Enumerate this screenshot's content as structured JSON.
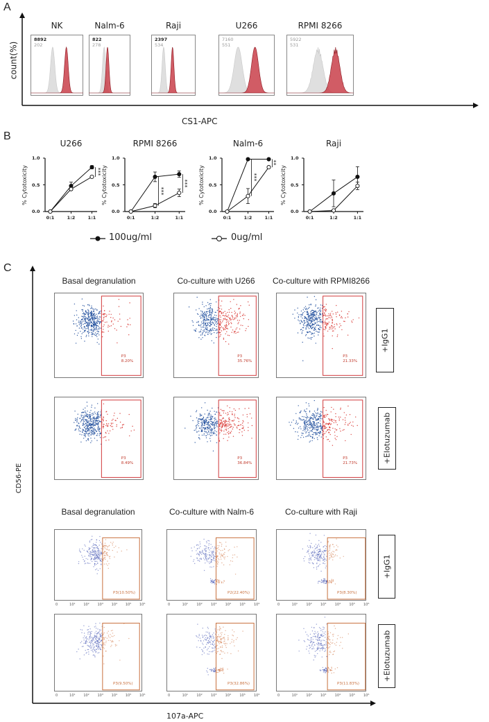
{
  "colors": {
    "isotype_fill": "#d9d9d9",
    "cs1_fill": "#c9404a",
    "cs1_stroke": "#8b1a22",
    "gate": "#d0383a",
    "gate_orange": "#c8703e",
    "dot_blue": "#1f4e9c",
    "dot_red": "#d8332f",
    "dot_blue_light": "#4b5cb5",
    "dot_orange": "#d27a4a"
  },
  "panel_a": {
    "label": "A",
    "ylabel": "count(%)",
    "xlabel": "CS1-APC",
    "histograms": [
      {
        "title": "NK",
        "count_cs1": "8892",
        "count_isotype": "202"
      },
      {
        "title": "Nalm-6",
        "count_cs1": "822",
        "count_isotype": "278"
      },
      {
        "title": "Raji",
        "count_cs1": "2397",
        "count_isotype": "534"
      },
      {
        "title": "U266",
        "count_cs1": "7160",
        "count_isotype": "551"
      },
      {
        "title": "RPMI 8266",
        "count_cs1": "5922",
        "count_isotype": "531"
      }
    ]
  },
  "panel_b": {
    "label": "B",
    "legend": {
      "filled": "100ug/ml",
      "open": "0ug/ml"
    }
  },
  "chart_data": [
    {
      "type": "line",
      "title": "U266",
      "ylabel": "% Cytotoxicity",
      "xlabel": "",
      "categories": [
        "0:1",
        "1:2",
        "1:1"
      ],
      "ylim": [
        0,
        1
      ],
      "yticks": [
        "0.0",
        "0.5",
        "1.0"
      ],
      "grid": false,
      "series": [
        {
          "name": "100ug/ml",
          "marker": "filled",
          "values": [
            0,
            0.48,
            0.83
          ],
          "errors": [
            0,
            0.07,
            0.03
          ]
        },
        {
          "name": "0ug/ml",
          "marker": "open",
          "values": [
            0,
            0.42,
            0.65
          ],
          "errors": [
            0,
            0.02,
            0.02
          ]
        }
      ],
      "significance": [
        {
          "category": "1:1",
          "label": "***"
        }
      ]
    },
    {
      "type": "line",
      "title": "RPMI 8266",
      "ylabel": "% Cytotoxicity",
      "xlabel": "",
      "categories": [
        "0:1",
        "1:2",
        "1:1"
      ],
      "ylim": [
        0,
        1
      ],
      "yticks": [
        "0.0",
        "0.5",
        "1.0"
      ],
      "grid": false,
      "series": [
        {
          "name": "100ug/ml",
          "marker": "filled",
          "values": [
            0,
            0.65,
            0.7
          ],
          "errors": [
            0,
            0.09,
            0.06
          ]
        },
        {
          "name": "0ug/ml",
          "marker": "open",
          "values": [
            0,
            0.11,
            0.35
          ],
          "errors": [
            0,
            0.04,
            0.07
          ]
        }
      ],
      "significance": [
        {
          "category": "1:2",
          "label": "***"
        },
        {
          "category": "1:1",
          "label": "***"
        }
      ]
    },
    {
      "type": "line",
      "title": "Nalm-6",
      "ylabel": "% Cytotoxicity",
      "xlabel": "",
      "categories": [
        "0:1",
        "1:2",
        "1:1"
      ],
      "ylim": [
        0,
        1
      ],
      "yticks": [
        "0.0",
        "0.5",
        "1.0"
      ],
      "grid": false,
      "series": [
        {
          "name": "100ug/ml",
          "marker": "filled",
          "values": [
            0,
            0.98,
            0.98
          ],
          "errors": [
            0,
            0.01,
            0.01
          ]
        },
        {
          "name": "0ug/ml",
          "marker": "open",
          "values": [
            0,
            0.29,
            0.83
          ],
          "errors": [
            0,
            0.14,
            0.01
          ]
        }
      ],
      "significance": [
        {
          "category": "1:2",
          "label": "***"
        },
        {
          "category": "1:1",
          "label": "**"
        }
      ]
    },
    {
      "type": "line",
      "title": "Raji",
      "ylabel": "% Cytotoxicity",
      "xlabel": "",
      "categories": [
        "0:1",
        "1:2",
        "1:1"
      ],
      "ylim": [
        0,
        1
      ],
      "yticks": [
        "0.0",
        "0.5",
        "1.0"
      ],
      "grid": false,
      "series": [
        {
          "name": "100ug/ml",
          "marker": "filled",
          "values": [
            0,
            0.34,
            0.65
          ],
          "errors": [
            0,
            0.25,
            0.19
          ]
        },
        {
          "name": "0ug/ml",
          "marker": "open",
          "values": [
            0,
            0.02,
            0.48
          ],
          "errors": [
            0,
            0.01,
            0.07
          ]
        }
      ],
      "significance": []
    }
  ],
  "panel_c": {
    "label": "C",
    "ylabel": "CD56-PE",
    "xlabel": "107a-APC",
    "xticks_lower": [
      "0",
      "10¹",
      "10²",
      "10³",
      "10⁴",
      "10⁵",
      "10⁶"
    ],
    "rows": [
      {
        "treatment": "+IgG1",
        "plots": [
          {
            "title": "Basal degranulation",
            "gate_name": "P3",
            "gate_pct": "8.20%"
          },
          {
            "title": "Co-culture with U266",
            "gate_name": "P3",
            "gate_pct": "35.76%"
          },
          {
            "title": "Co-culture with RPMI8266",
            "gate_name": "P3",
            "gate_pct": "21.33%"
          }
        ]
      },
      {
        "treatment": "+Elotuzumab",
        "plots": [
          {
            "gate_name": "P3",
            "gate_pct": "8.49%"
          },
          {
            "gate_name": "P3",
            "gate_pct": "36.84%"
          },
          {
            "gate_name": "P3",
            "gate_pct": "21.73%"
          }
        ]
      },
      {
        "treatment": "+IgG1",
        "plots": [
          {
            "title": "Basal degranulation",
            "gate_label": "P3(10.50%)"
          },
          {
            "title": "Co-culture with Nalm-6",
            "gate_label": "P2(22.40%)"
          },
          {
            "title": "Co-culture with Raji",
            "gate_label": "P3(8.30%)"
          }
        ]
      },
      {
        "treatment": "+Elotuzumab",
        "plots": [
          {
            "gate_label": "P3(9.50%)"
          },
          {
            "gate_label": "P3(32.86%)"
          },
          {
            "gate_label": "P3(11.83%)"
          }
        ]
      }
    ]
  }
}
